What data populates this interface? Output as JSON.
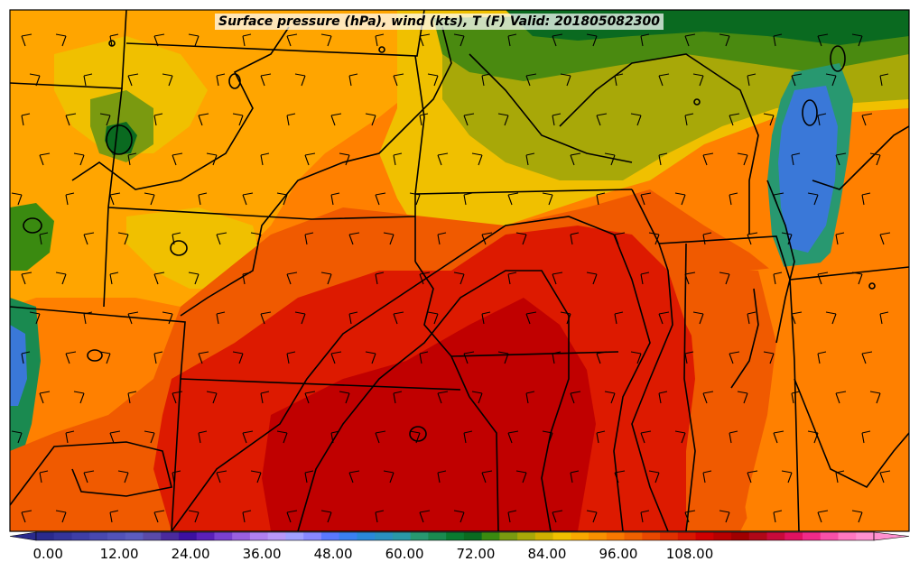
{
  "title": "Surface pressure (hPa), wind (kts), T (F) Valid: 201805082300",
  "colorbar": {
    "tick_labels": [
      "0.00",
      "12.00",
      "24.00",
      "36.00",
      "48.00",
      "60.00",
      "72.00",
      "84.00",
      "96.00",
      "108.00"
    ],
    "tick_values": [
      0,
      12,
      24,
      36,
      48,
      60,
      72,
      84,
      96,
      108
    ],
    "min": -2,
    "max": 120,
    "step": 3,
    "colors": [
      "#2a2a8c",
      "#343499",
      "#3e3ea6",
      "#4848b0",
      "#5252b8",
      "#5c5cbe",
      "#5a4aa8",
      "#4a2a9c",
      "#3c10a0",
      "#5a20b8",
      "#7a40d0",
      "#9a60e0",
      "#b080f0",
      "#b898f8",
      "#a0a0ff",
      "#8888ff",
      "#5a78ff",
      "#3a80f0",
      "#2a88d8",
      "#2a90c0",
      "#2a98a8",
      "#289870",
      "#1a8a50",
      "#0a7a30",
      "#0a6a20",
      "#3a8a10",
      "#7a9a10",
      "#a8a808",
      "#d0b000",
      "#f0c000",
      "#f8a800",
      "#f89000",
      "#f87800",
      "#f06000",
      "#e84800",
      "#e03000",
      "#d81800",
      "#d00000",
      "#b80000",
      "#a00000",
      "#b00818",
      "#c80a3a",
      "#e01260",
      "#f02a88",
      "#f850a8",
      "#ff78c0",
      "#ff90d0"
    ]
  },
  "map_palette": {
    "orange": "#ff8000",
    "amber": "#ffa500",
    "yellow": "#f0c000",
    "olive": "#a8a808",
    "green": "#4a8a10",
    "dark_green": "#0a6a20",
    "red_orange": "#f05a00",
    "red": "#dd1a00",
    "dark_red": "#c00000",
    "lake_blue": "#3a78d8",
    "boundary": "#000000"
  }
}
